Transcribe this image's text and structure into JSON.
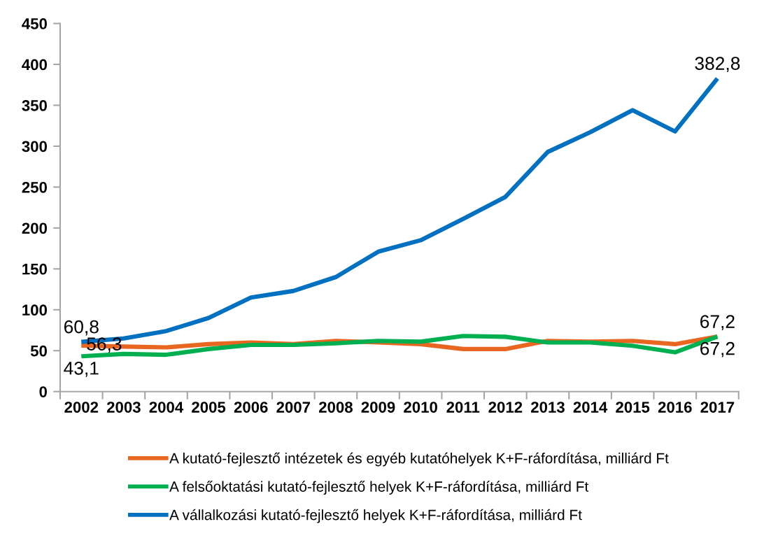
{
  "chart_data": {
    "type": "line",
    "categories": [
      "2002",
      "2003",
      "2004",
      "2005",
      "2006",
      "2007",
      "2008",
      "2009",
      "2010",
      "2011",
      "2012",
      "2013",
      "2014",
      "2015",
      "2016",
      "2017"
    ],
    "series": [
      {
        "name": "A kutató-fejlesztő intézetek és egyéb kutatóhelyek K+F-ráfordítása, milliárd Ft",
        "color": "#e8661f",
        "values": [
          56.3,
          55,
          54,
          58,
          60,
          58,
          62,
          60,
          58,
          52,
          52,
          62,
          61,
          62,
          58,
          67.2
        ],
        "value_labels": [
          "56,3",
          null,
          null,
          null,
          null,
          null,
          null,
          null,
          null,
          null,
          null,
          null,
          null,
          null,
          null,
          "67,2"
        ]
      },
      {
        "name": "A felsőoktatási kutató-fejlesztő helyek K+F-ráfordítása, milliárd Ft",
        "color": "#00b050",
        "values": [
          43.1,
          46,
          45,
          52,
          57,
          57,
          59,
          62,
          61,
          68,
          67,
          60,
          60,
          56,
          48,
          67.2
        ],
        "value_labels": [
          "43,1",
          null,
          null,
          null,
          null,
          null,
          null,
          null,
          null,
          null,
          null,
          null,
          null,
          null,
          null,
          "67,2"
        ]
      },
      {
        "name": "A vállalkozási kutató-fejlesztő helyek K+F-ráfordítása, milliárd Ft",
        "color": "#0070c0",
        "values": [
          60.8,
          65,
          74,
          90,
          115,
          123,
          140,
          171,
          185,
          211,
          238,
          293,
          317,
          344,
          318,
          382.8
        ],
        "value_labels": [
          "60,8",
          null,
          null,
          null,
          null,
          null,
          null,
          null,
          null,
          null,
          null,
          null,
          null,
          null,
          null,
          "382,8"
        ]
      }
    ],
    "ylim": [
      0,
      450
    ],
    "yticks": [
      0,
      50,
      100,
      150,
      200,
      250,
      300,
      350,
      400,
      450
    ],
    "legend": "bottom"
  }
}
